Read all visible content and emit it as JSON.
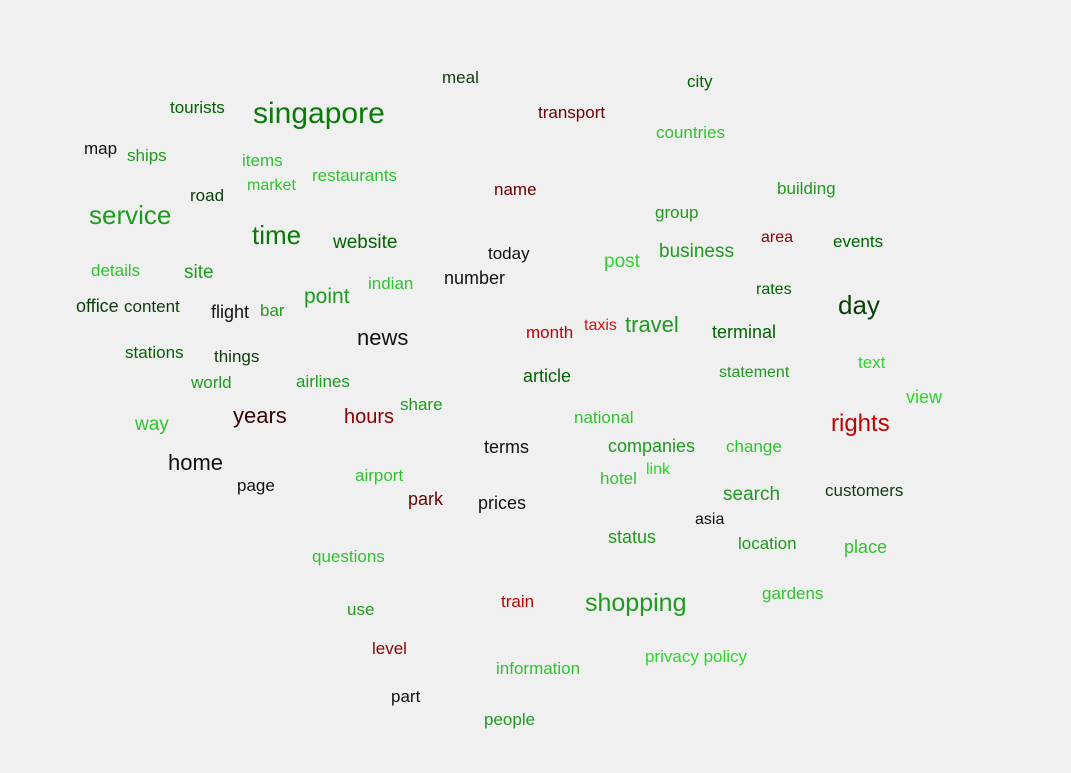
{
  "palette": {
    "background": "#f0f0f0",
    "bright_green": "#2fd42f",
    "green": "#1f9a1f",
    "dark_green": "#006400",
    "very_dark_green": "#0b3d0b",
    "black": "#111111",
    "dark_red": "#6b0000",
    "red": "#c40000",
    "bright_red": "#e01010"
  },
  "words": [
    {
      "text": "meal",
      "color": "#0b3d0b"
    },
    {
      "text": "city",
      "color": "#006400"
    },
    {
      "text": "tourists",
      "color": "#006400"
    },
    {
      "text": "singapore",
      "color": "#0a7a0a"
    },
    {
      "text": "transport",
      "color": "#6b0000"
    },
    {
      "text": "countries",
      "color": "#2fc42f"
    },
    {
      "text": "map",
      "color": "#111111"
    },
    {
      "text": "ships",
      "color": "#1f9a1f"
    },
    {
      "text": "items",
      "color": "#2fc42f"
    },
    {
      "text": "restaurants",
      "color": "#2fc42f"
    },
    {
      "text": "market",
      "color": "#2fc42f"
    },
    {
      "text": "road",
      "color": "#0b3d0b"
    },
    {
      "text": "name",
      "color": "#6b0000"
    },
    {
      "text": "building",
      "color": "#1f9a1f"
    },
    {
      "text": "service",
      "color": "#1f9a1f"
    },
    {
      "text": "group",
      "color": "#1f9a1f"
    },
    {
      "text": "time",
      "color": "#0a7a0a"
    },
    {
      "text": "website",
      "color": "#006400"
    },
    {
      "text": "area",
      "color": "#8b0000"
    },
    {
      "text": "events",
      "color": "#006400"
    },
    {
      "text": "today",
      "color": "#111111"
    },
    {
      "text": "business",
      "color": "#1f9a1f"
    },
    {
      "text": "post",
      "color": "#2fd42f"
    },
    {
      "text": "details",
      "color": "#2fc42f"
    },
    {
      "text": "site",
      "color": "#1f9a1f"
    },
    {
      "text": "number",
      "color": "#111111"
    },
    {
      "text": "indian",
      "color": "#2fc42f"
    },
    {
      "text": "rates",
      "color": "#006400"
    },
    {
      "text": "point",
      "color": "#1f9a1f"
    },
    {
      "text": "day",
      "color": "#0b3d0b"
    },
    {
      "text": "office",
      "color": "#0b3d0b"
    },
    {
      "text": "content",
      "color": "#0b3d0b"
    },
    {
      "text": "flight",
      "color": "#111111"
    },
    {
      "text": "bar",
      "color": "#1f9a1f"
    },
    {
      "text": "month",
      "color": "#c40000"
    },
    {
      "text": "taxis",
      "color": "#e01010"
    },
    {
      "text": "travel",
      "color": "#1f9a1f"
    },
    {
      "text": "terminal",
      "color": "#006400"
    },
    {
      "text": "news",
      "color": "#111111"
    },
    {
      "text": "stations",
      "color": "#006400"
    },
    {
      "text": "things",
      "color": "#0b3d0b"
    },
    {
      "text": "text",
      "color": "#2fd42f"
    },
    {
      "text": "world",
      "color": "#1f9a1f"
    },
    {
      "text": "airlines",
      "color": "#1f9a1f"
    },
    {
      "text": "article",
      "color": "#006400"
    },
    {
      "text": "statement",
      "color": "#1f9a1f"
    },
    {
      "text": "view",
      "color": "#2fd42f"
    },
    {
      "text": "share",
      "color": "#1f9a1f"
    },
    {
      "text": "way",
      "color": "#2fc42f"
    },
    {
      "text": "years",
      "color": "#3a0000"
    },
    {
      "text": "hours",
      "color": "#8b0000"
    },
    {
      "text": "national",
      "color": "#2fc42f"
    },
    {
      "text": "rights",
      "color": "#c40000"
    },
    {
      "text": "terms",
      "color": "#111111"
    },
    {
      "text": "companies",
      "color": "#1f9a1f"
    },
    {
      "text": "change",
      "color": "#2fc42f"
    },
    {
      "text": "home",
      "color": "#111111"
    },
    {
      "text": "airport",
      "color": "#2fc42f"
    },
    {
      "text": "hotel",
      "color": "#2fc42f"
    },
    {
      "text": "link",
      "color": "#2fd42f"
    },
    {
      "text": "page",
      "color": "#111111"
    },
    {
      "text": "customers",
      "color": "#0b3d0b"
    },
    {
      "text": "search",
      "color": "#1f9a1f"
    },
    {
      "text": "park",
      "color": "#6b0000"
    },
    {
      "text": "prices",
      "color": "#111111"
    },
    {
      "text": "asia",
      "color": "#111111"
    },
    {
      "text": "status",
      "color": "#1f9a1f"
    },
    {
      "text": "location",
      "color": "#1f9a1f"
    },
    {
      "text": "place",
      "color": "#2fc42f"
    },
    {
      "text": "questions",
      "color": "#2fc42f"
    },
    {
      "text": "use",
      "color": "#1f9a1f"
    },
    {
      "text": "train",
      "color": "#c40000"
    },
    {
      "text": "shopping",
      "color": "#1f9a1f"
    },
    {
      "text": "gardens",
      "color": "#2fc42f"
    },
    {
      "text": "level",
      "color": "#8b0000"
    },
    {
      "text": "privacy policy",
      "color": "#2fd42f"
    },
    {
      "text": "information",
      "color": "#2fc42f"
    },
    {
      "text": "part",
      "color": "#111111"
    },
    {
      "text": "people",
      "color": "#1f9a1f"
    }
  ]
}
